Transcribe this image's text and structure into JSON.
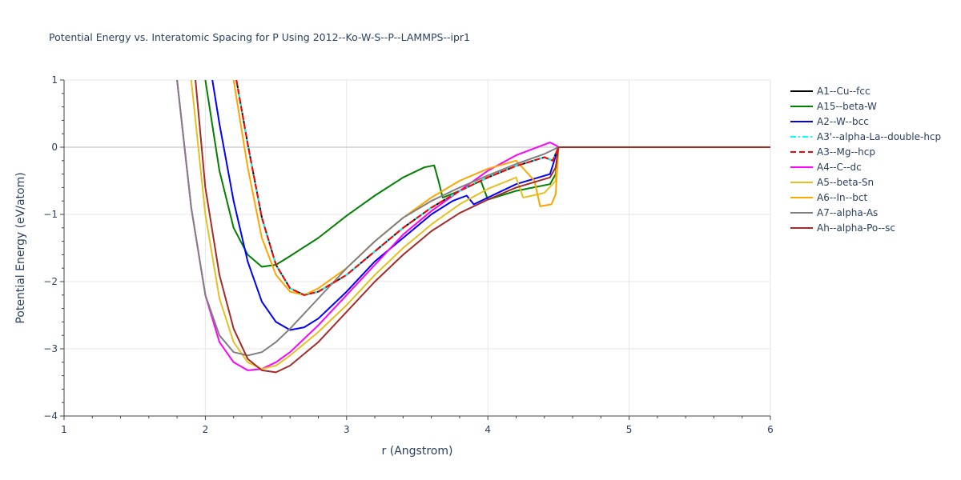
{
  "chart_data": {
    "type": "line",
    "title": "Potential Energy vs. Interatomic Spacing for P Using 2012--Ko-W-S--P--LAMMPS--ipr1",
    "xlabel": "r (Angstrom)",
    "ylabel": "Potential Energy (eV/atom)",
    "xlim": [
      1,
      6
    ],
    "ylim": [
      -4,
      1
    ],
    "xticks": [
      1,
      2,
      3,
      4,
      5,
      6
    ],
    "yticks": [
      -4,
      -3,
      -2,
      -1,
      0,
      1
    ],
    "xtick_labels": [
      "1",
      "2",
      "3",
      "4",
      "5",
      "6"
    ],
    "ytick_labels": [
      "−4",
      "−3",
      "−2",
      "−1",
      "0",
      "1"
    ],
    "grid": true,
    "legend_position": "top-right",
    "series": [
      {
        "name": "A1--Cu--fcc",
        "color": "#000000",
        "dash": "solid",
        "x": [
          2.22,
          2.3,
          2.4,
          2.5,
          2.6,
          2.7,
          2.8,
          3.0,
          3.2,
          3.4,
          3.6,
          3.8,
          4.0,
          4.2,
          4.4,
          4.46,
          4.5
        ],
        "y": [
          1.0,
          0.05,
          -1.05,
          -1.75,
          -2.1,
          -2.2,
          -2.15,
          -1.9,
          -1.55,
          -1.2,
          -0.9,
          -0.65,
          -0.45,
          -0.28,
          -0.15,
          -0.2,
          0.0
        ]
      },
      {
        "name": "A15--beta-W",
        "color": "#008000",
        "dash": "solid",
        "x": [
          2.0,
          2.1,
          2.2,
          2.3,
          2.4,
          2.5,
          2.6,
          2.8,
          3.0,
          3.2,
          3.4,
          3.55,
          3.62,
          3.65,
          3.68,
          3.8,
          3.95,
          4.0,
          4.2,
          4.44,
          4.48,
          4.5
        ],
        "y": [
          1.0,
          -0.35,
          -1.2,
          -1.6,
          -1.78,
          -1.75,
          -1.62,
          -1.35,
          -1.02,
          -0.72,
          -0.45,
          -0.3,
          -0.27,
          -0.5,
          -0.75,
          -0.65,
          -0.5,
          -0.78,
          -0.65,
          -0.55,
          -0.4,
          0.0
        ]
      },
      {
        "name": "A2--W--bcc",
        "color": "#0000ff",
        "dash": "solid",
        "x": [
          2.05,
          2.1,
          2.2,
          2.3,
          2.4,
          2.5,
          2.6,
          2.7,
          2.8,
          3.0,
          3.2,
          3.4,
          3.6,
          3.75,
          3.85,
          3.9,
          4.0,
          4.2,
          4.44,
          4.5
        ],
        "y": [
          1.0,
          0.35,
          -0.8,
          -1.7,
          -2.3,
          -2.6,
          -2.72,
          -2.68,
          -2.55,
          -2.15,
          -1.7,
          -1.35,
          -1.0,
          -0.8,
          -0.72,
          -0.85,
          -0.75,
          -0.55,
          -0.4,
          0.0
        ]
      },
      {
        "name": "A3'--alpha-La--double-hcp",
        "color": "#00ffff",
        "dash": "dashdot",
        "x": [
          2.22,
          2.3,
          2.4,
          2.5,
          2.6,
          2.7,
          2.8,
          3.0,
          3.2,
          3.4,
          3.6,
          3.8,
          4.0,
          4.2,
          4.4,
          4.46,
          4.5
        ],
        "y": [
          1.0,
          0.05,
          -1.05,
          -1.75,
          -2.1,
          -2.2,
          -2.15,
          -1.9,
          -1.55,
          -1.2,
          -0.9,
          -0.65,
          -0.45,
          -0.28,
          -0.15,
          -0.2,
          0.0
        ]
      },
      {
        "name": "A3--Mg--hcp",
        "color": "#ff0000",
        "dash": "dash",
        "x": [
          2.22,
          2.3,
          2.4,
          2.5,
          2.6,
          2.7,
          2.8,
          3.0,
          3.2,
          3.4,
          3.6,
          3.8,
          4.0,
          4.2,
          4.4,
          4.46,
          4.5
        ],
        "y": [
          1.0,
          0.05,
          -1.05,
          -1.75,
          -2.1,
          -2.2,
          -2.15,
          -1.9,
          -1.55,
          -1.2,
          -0.9,
          -0.65,
          -0.45,
          -0.28,
          -0.15,
          -0.2,
          0.0
        ]
      },
      {
        "name": "A4--C--dc",
        "color": "#ff00ff",
        "dash": "solid",
        "x": [
          1.8,
          1.9,
          2.0,
          2.1,
          2.2,
          2.3,
          2.4,
          2.5,
          2.6,
          2.8,
          3.0,
          3.2,
          3.4,
          3.6,
          3.8,
          4.0,
          4.2,
          4.44,
          4.48,
          4.5
        ],
        "y": [
          1.0,
          -0.9,
          -2.2,
          -2.9,
          -3.2,
          -3.32,
          -3.3,
          -3.2,
          -3.05,
          -2.65,
          -2.2,
          -1.75,
          -1.3,
          -0.95,
          -0.65,
          -0.35,
          -0.12,
          0.07,
          0.03,
          0.0
        ]
      },
      {
        "name": "A5--beta-Sn",
        "color": "#e6c020",
        "dash": "solid",
        "x": [
          1.9,
          2.0,
          2.1,
          2.2,
          2.3,
          2.4,
          2.5,
          2.6,
          2.8,
          3.0,
          3.2,
          3.4,
          3.6,
          3.8,
          4.0,
          4.2,
          4.25,
          4.4,
          4.48,
          4.5
        ],
        "y": [
          1.0,
          -1.0,
          -2.25,
          -2.9,
          -3.2,
          -3.3,
          -3.25,
          -3.1,
          -2.75,
          -2.35,
          -1.9,
          -1.5,
          -1.15,
          -0.85,
          -0.62,
          -0.45,
          -0.75,
          -0.68,
          -0.5,
          0.0
        ]
      },
      {
        "name": "A6--In--bct",
        "color": "#ffa500",
        "dash": "solid",
        "x": [
          2.2,
          2.3,
          2.4,
          2.5,
          2.6,
          2.7,
          2.8,
          3.0,
          3.2,
          3.4,
          3.6,
          3.8,
          4.0,
          4.2,
          4.33,
          4.37,
          4.45,
          4.48,
          4.5
        ],
        "y": [
          1.0,
          -0.3,
          -1.35,
          -1.9,
          -2.15,
          -2.2,
          -2.1,
          -1.8,
          -1.4,
          -1.05,
          -0.75,
          -0.5,
          -0.32,
          -0.2,
          -0.5,
          -0.88,
          -0.85,
          -0.7,
          0.0
        ]
      },
      {
        "name": "A7--alpha-As",
        "color": "#808080",
        "dash": "solid",
        "x": [
          1.8,
          1.9,
          2.0,
          2.1,
          2.2,
          2.3,
          2.4,
          2.5,
          2.6,
          2.8,
          3.0,
          3.2,
          3.4,
          3.6,
          3.8,
          4.0,
          4.2,
          4.4,
          4.5
        ],
        "y": [
          1.0,
          -0.9,
          -2.2,
          -2.8,
          -3.05,
          -3.1,
          -3.05,
          -2.9,
          -2.7,
          -2.25,
          -1.8,
          -1.4,
          -1.05,
          -0.8,
          -0.6,
          -0.42,
          -0.25,
          -0.1,
          0.0
        ]
      },
      {
        "name": "Ah--alpha-Po--sc",
        "color": "#a52a2a",
        "dash": "solid",
        "x": [
          1.93,
          2.0,
          2.1,
          2.2,
          2.3,
          2.4,
          2.5,
          2.6,
          2.8,
          3.0,
          3.2,
          3.4,
          3.6,
          3.8,
          4.0,
          4.2,
          4.44,
          4.48,
          4.5,
          5.0,
          6.0
        ],
        "y": [
          1.0,
          -0.6,
          -1.9,
          -2.7,
          -3.15,
          -3.32,
          -3.35,
          -3.25,
          -2.9,
          -2.45,
          -2.0,
          -1.6,
          -1.25,
          -0.98,
          -0.78,
          -0.6,
          -0.45,
          -0.3,
          0.0,
          0.0,
          0.0
        ]
      }
    ]
  }
}
